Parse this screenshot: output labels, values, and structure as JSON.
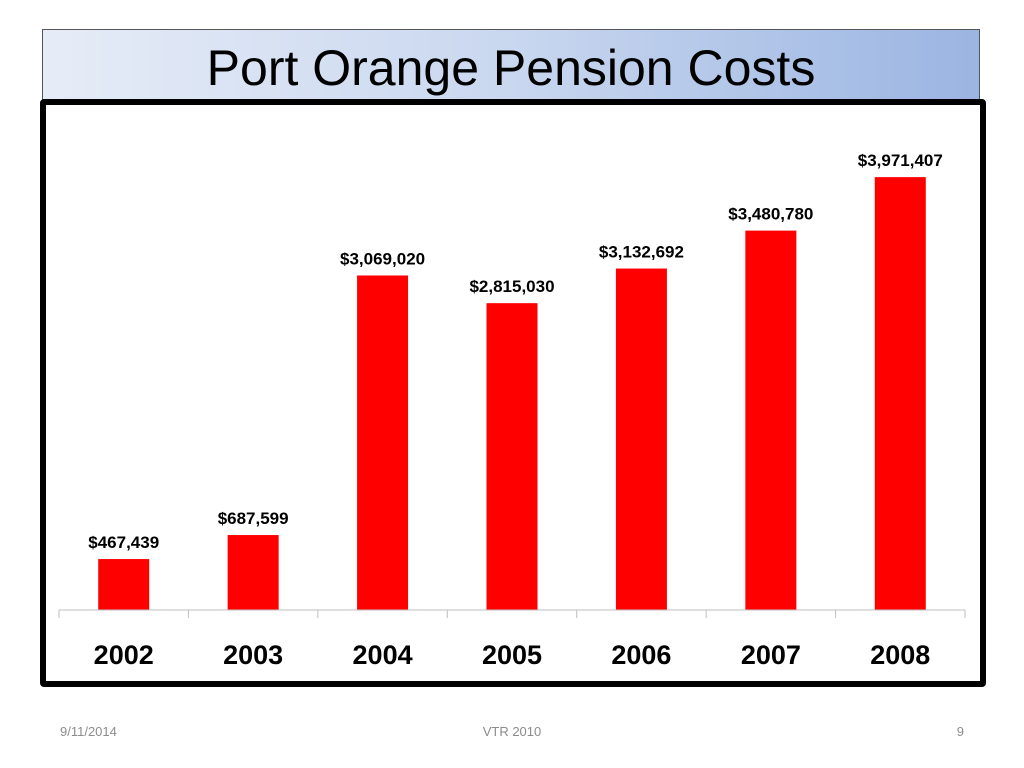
{
  "slide": {
    "title": "Port Orange Pension Costs",
    "footer_date": "9/11/2014",
    "footer_center": "VTR 2010",
    "page_number": "9"
  },
  "colors": {
    "bar": "#ff0000",
    "axis": "#bfbfbf",
    "frame": "#000000"
  },
  "chart_data": {
    "type": "bar",
    "title": "",
    "xlabel": "",
    "ylabel": "",
    "categories": [
      "2002",
      "2003",
      "2004",
      "2005",
      "2006",
      "2007",
      "2008"
    ],
    "values": [
      467439,
      687599,
      3069020,
      2815030,
      3132692,
      3480780,
      3971407
    ],
    "data_labels": [
      "$467,439",
      "$687,599",
      "$3,069,020",
      "$2,815,030",
      "$3,132,692",
      "$3,480,780",
      "$3,971,407"
    ],
    "ylim": [
      0,
      4000000
    ],
    "grid": false,
    "legend": "none"
  }
}
